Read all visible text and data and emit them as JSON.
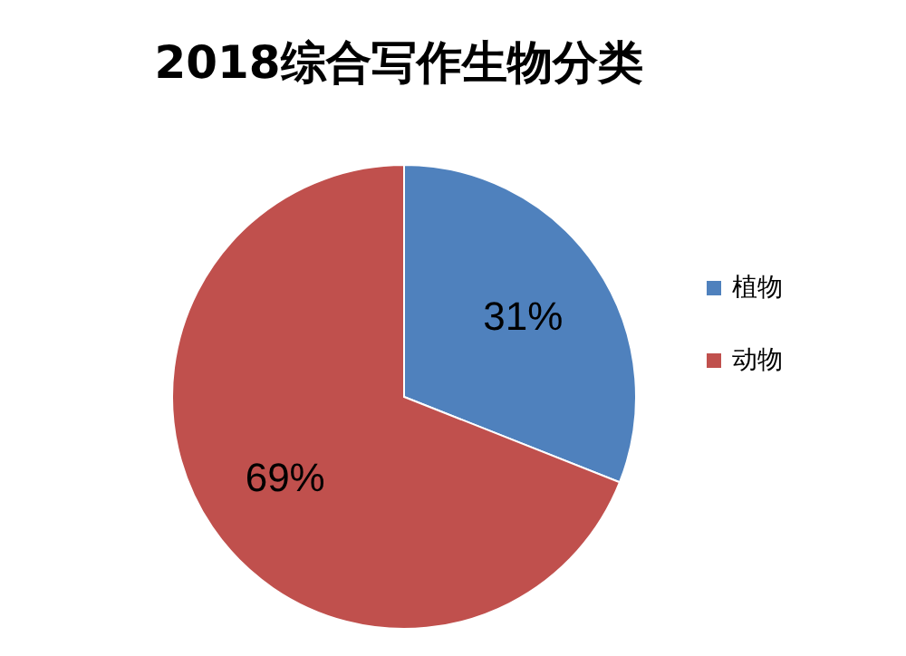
{
  "chart_data": {
    "type": "pie",
    "title": "2018综合写作生物分类",
    "categories": [
      "植物",
      "动物"
    ],
    "values": [
      31,
      69
    ],
    "value_labels": [
      "31%",
      "69%"
    ],
    "colors": [
      "#4f81bd",
      "#c0504d"
    ],
    "legend": "right"
  }
}
